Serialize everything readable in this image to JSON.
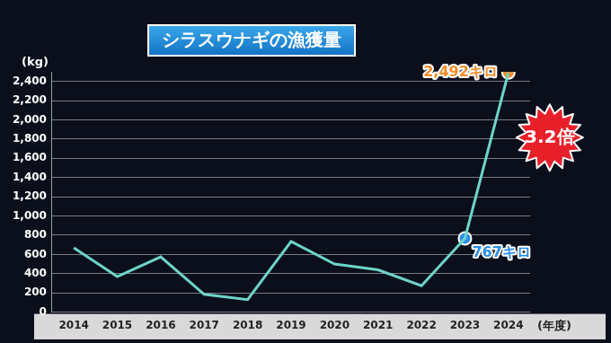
{
  "chart_data": {
    "type": "line",
    "title": "シラスウナギの漁獲量",
    "y_label": "(kg)",
    "x_label": "(年度)",
    "categories": [
      "2014",
      "2015",
      "2016",
      "2017",
      "2018",
      "2019",
      "2020",
      "2021",
      "2022",
      "2023",
      "2024"
    ],
    "values": [
      670,
      370,
      575,
      185,
      130,
      735,
      500,
      440,
      275,
      767,
      2492
    ],
    "color": "#6ed3c9",
    "ylim": [
      0,
      2500
    ],
    "yticks": [
      0,
      200,
      400,
      600,
      800,
      {
        "value": 1000,
        "label": "1,000"
      },
      {
        "value": 1200,
        "label": "1,200"
      },
      {
        "value": 1400,
        "label": "1,400"
      },
      {
        "value": 1600,
        "label": "1,600"
      },
      {
        "value": 1800,
        "label": "1,800"
      },
      {
        "value": 2000,
        "label": "2,000"
      },
      {
        "value": 2200,
        "label": "2,200"
      },
      {
        "value": 2400,
        "label": "2,400"
      }
    ],
    "grid": true,
    "annotations": [
      {
        "text": "2,492キロ",
        "category": "2024",
        "value": 2492,
        "color": "#f28c28"
      },
      {
        "text": "767キロ",
        "category": "2023",
        "value": 767,
        "color": "#2b8fe6"
      },
      {
        "text": "3.2倍",
        "color": "#e8202a"
      }
    ]
  }
}
